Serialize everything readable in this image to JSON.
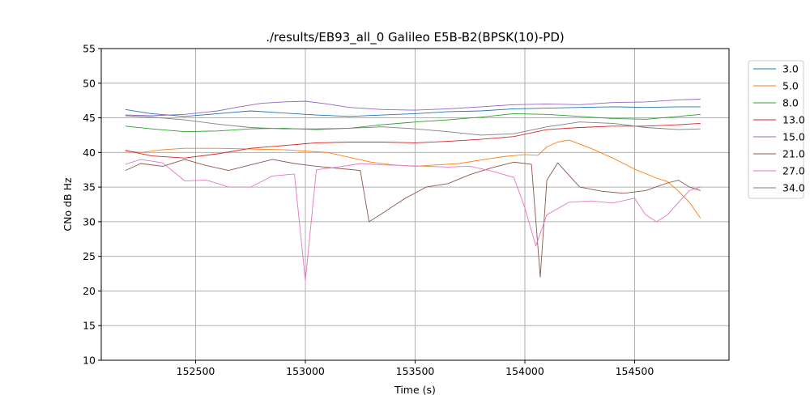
{
  "chart_data": {
    "type": "line",
    "title": "./results/EB93_all_0 Galileo E5B-B2(BPSK(10)-PD)",
    "xlabel": "Time (s)",
    "ylabel": "CNo dB Hz",
    "xlim": [
      152070,
      154930
    ],
    "ylim": [
      10,
      55
    ],
    "xticks": [
      152500,
      153000,
      153500,
      154000,
      154500
    ],
    "yticks": [
      10,
      15,
      20,
      25,
      30,
      35,
      40,
      45,
      50,
      55
    ],
    "grid": true,
    "legend_position": "outside-top-right",
    "series": [
      {
        "name": "3.0",
        "color": "#1f77b4",
        "x": [
          152180,
          152300,
          152450,
          152600,
          152750,
          152900,
          153050,
          153200,
          153350,
          153500,
          153650,
          153800,
          153950,
          154100,
          154250,
          154400,
          154550,
          154700,
          154800
        ],
        "y": [
          46.2,
          45.6,
          45.2,
          45.6,
          46.0,
          45.7,
          45.4,
          45.2,
          45.4,
          45.6,
          45.9,
          46.0,
          46.3,
          46.4,
          46.5,
          46.6,
          46.5,
          46.6,
          46.6
        ]
      },
      {
        "name": "5.0",
        "color": "#ff7f0e",
        "x": [
          152180,
          152250,
          152350,
          152450,
          152600,
          152750,
          152900,
          153000,
          153100,
          153200,
          153300,
          153400,
          153500,
          153600,
          153700,
          153800,
          153900,
          154000,
          154060,
          154100,
          154150,
          154200,
          154300,
          154400,
          154500,
          154600,
          154650,
          154700,
          154750,
          154800
        ],
        "y": [
          40.2,
          40.0,
          40.4,
          40.6,
          40.6,
          40.5,
          40.4,
          40.2,
          40.0,
          39.3,
          38.6,
          38.2,
          38.0,
          38.2,
          38.4,
          38.9,
          39.4,
          39.7,
          39.6,
          40.8,
          41.5,
          41.8,
          40.6,
          39.2,
          37.6,
          36.3,
          35.8,
          34.4,
          32.8,
          30.5
        ]
      },
      {
        "name": "8.0",
        "color": "#2ca02c",
        "x": [
          152180,
          152300,
          152450,
          152600,
          152750,
          152900,
          153050,
          153200,
          153350,
          153500,
          153650,
          153800,
          153950,
          154100,
          154250,
          154400,
          154550,
          154700,
          154800
        ],
        "y": [
          43.8,
          43.4,
          43.0,
          43.1,
          43.4,
          43.5,
          43.3,
          43.5,
          44.0,
          44.4,
          44.7,
          45.1,
          45.6,
          45.5,
          45.2,
          44.9,
          44.8,
          45.2,
          45.5
        ]
      },
      {
        "name": "13.0",
        "color": "#d62728",
        "x": [
          152180,
          152300,
          152450,
          152600,
          152750,
          152900,
          153050,
          153200,
          153350,
          153500,
          153650,
          153800,
          153950,
          154100,
          154250,
          154400,
          154550,
          154700,
          154800
        ],
        "y": [
          40.3,
          39.5,
          39.2,
          39.8,
          40.6,
          41.0,
          41.4,
          41.5,
          41.5,
          41.4,
          41.6,
          41.9,
          42.3,
          43.3,
          43.6,
          43.8,
          43.8,
          44.0,
          44.2
        ]
      },
      {
        "name": "15.0",
        "color": "#9467bd",
        "x": [
          152180,
          152300,
          152450,
          152600,
          152700,
          152800,
          152900,
          153000,
          153100,
          153200,
          153350,
          153500,
          153650,
          153800,
          153950,
          154100,
          154250,
          154400,
          154550,
          154700,
          154800
        ],
        "y": [
          45.4,
          45.3,
          45.5,
          46.0,
          46.6,
          47.1,
          47.3,
          47.4,
          47.0,
          46.5,
          46.2,
          46.1,
          46.3,
          46.6,
          46.9,
          47.0,
          46.9,
          47.2,
          47.3,
          47.6,
          47.7
        ]
      },
      {
        "name": "21.0",
        "color": "#8c564b",
        "x": [
          152180,
          152250,
          152350,
          152450,
          152550,
          152650,
          152750,
          152850,
          152950,
          153050,
          153150,
          153250,
          153290,
          153350,
          153450,
          153550,
          153650,
          153750,
          153850,
          153950,
          154030,
          154070,
          154100,
          154150,
          154250,
          154350,
          154450,
          154550,
          154650,
          154700,
          154750,
          154800
        ],
        "y": [
          37.4,
          38.4,
          38.0,
          39.0,
          38.1,
          37.4,
          38.2,
          39.0,
          38.4,
          38.0,
          37.7,
          37.4,
          30.0,
          31.2,
          33.3,
          35.0,
          35.5,
          36.8,
          37.8,
          38.6,
          38.3,
          22.0,
          36.0,
          38.5,
          35.0,
          34.4,
          34.1,
          34.5,
          35.6,
          36.0,
          35.0,
          34.5
        ]
      },
      {
        "name": "27.0",
        "color": "#e377c2",
        "x": [
          152180,
          152250,
          152350,
          152450,
          152550,
          152650,
          152750,
          152850,
          152950,
          153000,
          153050,
          153150,
          153250,
          153350,
          153450,
          153550,
          153650,
          153750,
          153850,
          153950,
          154000,
          154050,
          154100,
          154200,
          154300,
          154400,
          154500,
          154550,
          154600,
          154650,
          154700,
          154750,
          154800
        ],
        "y": [
          38.3,
          39.0,
          38.5,
          35.9,
          36.0,
          35.0,
          35.0,
          36.6,
          36.9,
          21.5,
          37.5,
          37.9,
          38.4,
          38.2,
          38.1,
          38.0,
          37.9,
          38.0,
          37.3,
          36.4,
          32.0,
          26.5,
          31.0,
          32.8,
          33.0,
          32.7,
          33.4,
          31.0,
          30.0,
          31.0,
          32.8,
          34.5,
          35.0
        ]
      },
      {
        "name": "34.0",
        "color": "#7f7f7f",
        "x": [
          152180,
          152300,
          152450,
          152600,
          152750,
          152900,
          153050,
          153200,
          153350,
          153500,
          153650,
          153800,
          153950,
          154100,
          154250,
          154400,
          154550,
          154700,
          154800
        ],
        "y": [
          45.3,
          45.1,
          44.7,
          44.1,
          43.6,
          43.4,
          43.4,
          43.5,
          43.7,
          43.4,
          43.0,
          42.5,
          42.7,
          43.7,
          44.4,
          44.2,
          43.6,
          43.3,
          43.4
        ]
      }
    ]
  }
}
